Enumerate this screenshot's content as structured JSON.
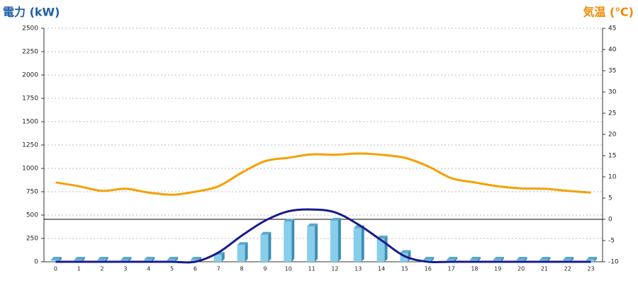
{
  "chart_data": {
    "type": "combo",
    "y_title": "電力 (kW)",
    "y2_title": "気温 (℃)",
    "categories": [
      "0",
      "1",
      "2",
      "3",
      "4",
      "5",
      "6",
      "7",
      "8",
      "9",
      "10",
      "11",
      "12",
      "13",
      "14",
      "15",
      "16",
      "17",
      "18",
      "19",
      "20",
      "21",
      "22",
      "23"
    ],
    "ylim": [
      0,
      2500
    ],
    "yticks": [
      0,
      250,
      500,
      750,
      1000,
      1250,
      1500,
      1750,
      2000,
      2250,
      2500
    ],
    "y2lim": [
      -10,
      45
    ],
    "y2ticks": [
      -10,
      -5,
      0,
      5,
      10,
      15,
      20,
      25,
      30,
      35,
      40,
      45
    ],
    "grid": true,
    "series": [
      {
        "kind": "bar3d",
        "color": "#87ceeb",
        "values": [
          0,
          0,
          0,
          0,
          0,
          0,
          0,
          75,
          180,
          290,
          430,
          380,
          440,
          360,
          250,
          95,
          0,
          0,
          0,
          0,
          0,
          0,
          0,
          0
        ]
      },
      {
        "kind": "line",
        "color": "#1a1a8c",
        "values": [
          0,
          0,
          0,
          0,
          0,
          0,
          0,
          100,
          280,
          440,
          540,
          560,
          530,
          400,
          230,
          60,
          0,
          0,
          0,
          0,
          0,
          0,
          0,
          0
        ]
      },
      {
        "kind": "line",
        "axis": "y2",
        "color": "#f5a000",
        "values": [
          8.7,
          7.8,
          6.7,
          7.2,
          6.3,
          5.8,
          6.5,
          7.8,
          11,
          13.7,
          14.5,
          15.3,
          15.2,
          15.5,
          15.2,
          14.5,
          12.5,
          9.7,
          8.7,
          7.8,
          7.3,
          7.2,
          6.7,
          6.3
        ]
      }
    ]
  }
}
